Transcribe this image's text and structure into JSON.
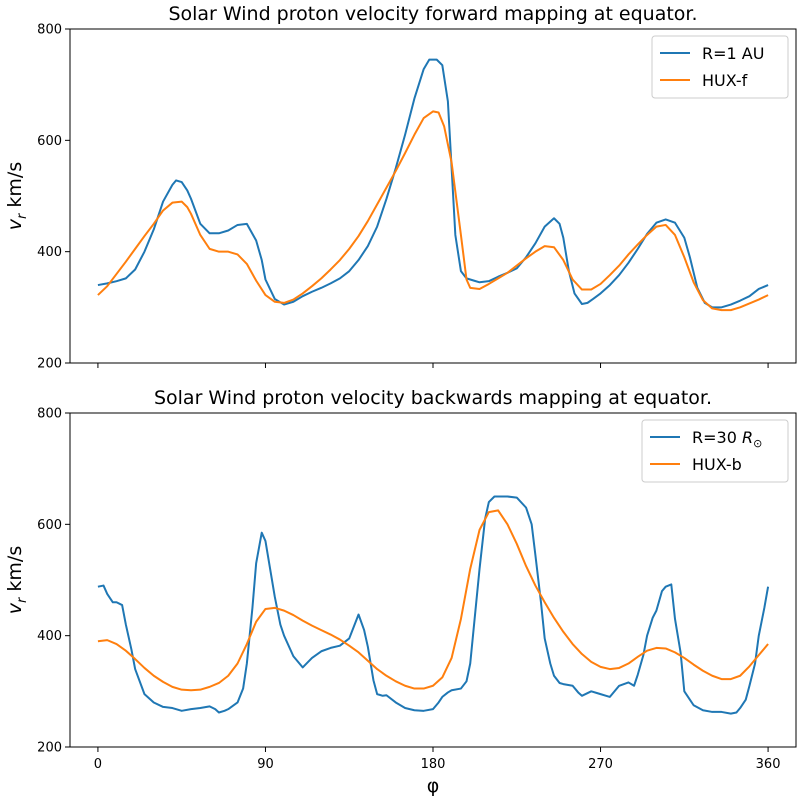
{
  "chart_data": [
    {
      "type": "line",
      "title": "Solar Wind proton velocity forward mapping at equator.",
      "ylabel_main": "v",
      "ylabel_sub": "r",
      "ylabel_unit": " km/s",
      "xlabel": "",
      "xlim": [
        -15,
        375
      ],
      "ylim": [
        200,
        800
      ],
      "xticks": [
        0,
        90,
        180,
        270,
        360
      ],
      "xtick_labels": [
        "",
        "",
        "",
        "",
        ""
      ],
      "yticks": [
        200,
        400,
        600,
        800
      ],
      "legend_position": "top-right",
      "series": [
        {
          "name_main": "R=1 AU",
          "name_sub": "",
          "color": "#1f77b4",
          "x": [
            0,
            5,
            10,
            15,
            20,
            25,
            30,
            35,
            40,
            42,
            45,
            48,
            50,
            55,
            60,
            65,
            70,
            75,
            80,
            85,
            88,
            90,
            95,
            100,
            105,
            110,
            115,
            120,
            125,
            130,
            135,
            140,
            145,
            150,
            155,
            160,
            165,
            170,
            175,
            178,
            182,
            185,
            188,
            192,
            195,
            198,
            202,
            205,
            210,
            215,
            220,
            225,
            230,
            235,
            240,
            245,
            248,
            250,
            253,
            256,
            260,
            263,
            266,
            270,
            275,
            280,
            285,
            290,
            295,
            300,
            305,
            310,
            315,
            318,
            322,
            326,
            330,
            335,
            340,
            345,
            350,
            355,
            360
          ],
          "y": [
            340,
            343,
            347,
            352,
            368,
            400,
            440,
            490,
            520,
            528,
            525,
            510,
            495,
            450,
            433,
            433,
            438,
            448,
            450,
            420,
            385,
            350,
            315,
            305,
            310,
            320,
            328,
            335,
            343,
            352,
            365,
            385,
            410,
            445,
            495,
            550,
            610,
            675,
            728,
            745,
            745,
            735,
            670,
            430,
            365,
            352,
            348,
            345,
            347,
            355,
            362,
            370,
            390,
            415,
            445,
            460,
            450,
            425,
            365,
            325,
            306,
            308,
            315,
            325,
            340,
            358,
            380,
            405,
            432,
            452,
            458,
            452,
            425,
            390,
            335,
            308,
            300,
            300,
            305,
            312,
            320,
            333,
            340
          ]
        },
        {
          "name_main": "HUX-f",
          "name_sub": "",
          "color": "#ff7f0e",
          "x": [
            0,
            5,
            10,
            15,
            20,
            25,
            30,
            35,
            40,
            45,
            48,
            50,
            55,
            60,
            65,
            70,
            75,
            80,
            85,
            90,
            95,
            100,
            105,
            110,
            115,
            120,
            125,
            130,
            135,
            140,
            145,
            150,
            155,
            160,
            165,
            170,
            175,
            180,
            183,
            186,
            190,
            195,
            198,
            200,
            205,
            210,
            215,
            220,
            225,
            230,
            235,
            240,
            245,
            250,
            255,
            260,
            265,
            270,
            275,
            280,
            285,
            290,
            295,
            300,
            305,
            310,
            315,
            320,
            325,
            330,
            335,
            340,
            345,
            350,
            355,
            360
          ],
          "y": [
            322,
            338,
            360,
            382,
            405,
            428,
            450,
            474,
            488,
            490,
            480,
            468,
            430,
            405,
            400,
            400,
            395,
            378,
            348,
            322,
            310,
            308,
            314,
            325,
            338,
            352,
            368,
            385,
            405,
            428,
            455,
            485,
            515,
            545,
            577,
            610,
            640,
            652,
            650,
            625,
            560,
            430,
            350,
            335,
            333,
            342,
            352,
            362,
            375,
            388,
            400,
            410,
            408,
            385,
            350,
            332,
            332,
            342,
            358,
            375,
            395,
            413,
            430,
            445,
            448,
            430,
            390,
            345,
            313,
            298,
            295,
            295,
            300,
            307,
            314,
            322
          ]
        }
      ]
    },
    {
      "type": "line",
      "title": "Solar Wind proton velocity backwards mapping at equator.",
      "ylabel_main": "v",
      "ylabel_sub": "r",
      "ylabel_unit": " km/s",
      "xlabel": "φ",
      "xlim": [
        -15,
        375
      ],
      "ylim": [
        200,
        800
      ],
      "xticks": [
        0,
        90,
        180,
        270,
        360
      ],
      "xtick_labels": [
        "0",
        "90",
        "180",
        "270",
        "360"
      ],
      "yticks": [
        200,
        400,
        600,
        800
      ],
      "legend_position": "top-right",
      "series": [
        {
          "name_main": "R=30 ",
          "name_sub": "⊙",
          "color": "#1f77b4",
          "x": [
            0,
            3,
            5,
            8,
            10,
            13,
            15,
            18,
            20,
            25,
            30,
            35,
            40,
            45,
            50,
            55,
            60,
            63,
            65,
            68,
            70,
            75,
            78,
            80,
            83,
            85,
            88,
            90,
            93,
            95,
            98,
            100,
            105,
            110,
            115,
            120,
            125,
            130,
            135,
            140,
            143,
            145,
            148,
            150,
            153,
            155,
            160,
            165,
            170,
            175,
            180,
            183,
            185,
            188,
            190,
            195,
            198,
            200,
            205,
            208,
            210,
            213,
            215,
            218,
            220,
            225,
            230,
            233,
            235,
            238,
            240,
            243,
            245,
            248,
            250,
            255,
            258,
            260,
            265,
            268,
            270,
            273,
            275,
            280,
            285,
            288,
            290,
            293,
            295,
            298,
            300,
            303,
            305,
            308,
            310,
            313,
            315,
            318,
            320,
            325,
            330,
            335,
            340,
            343,
            345,
            348,
            350,
            353,
            355,
            358,
            360
          ],
          "y": [
            488,
            490,
            475,
            460,
            460,
            455,
            420,
            375,
            340,
            295,
            280,
            272,
            270,
            265,
            268,
            270,
            273,
            268,
            262,
            265,
            268,
            280,
            305,
            350,
            450,
            530,
            585,
            570,
            510,
            470,
            420,
            400,
            363,
            343,
            360,
            372,
            378,
            382,
            395,
            438,
            410,
            380,
            320,
            295,
            292,
            293,
            280,
            270,
            266,
            265,
            268,
            280,
            290,
            298,
            302,
            305,
            318,
            350,
            520,
            610,
            640,
            650,
            650,
            650,
            650,
            648,
            630,
            600,
            545,
            460,
            395,
            350,
            328,
            315,
            313,
            310,
            298,
            292,
            300,
            297,
            295,
            292,
            290,
            310,
            316,
            310,
            330,
            365,
            400,
            432,
            445,
            480,
            488,
            492,
            430,
            370,
            300,
            285,
            275,
            266,
            263,
            263,
            260,
            262,
            270,
            285,
            310,
            350,
            400,
            450,
            488
          ]
        },
        {
          "name_main": "HUX-b",
          "name_sub": "",
          "color": "#ff7f0e",
          "x": [
            0,
            5,
            10,
            15,
            20,
            25,
            30,
            35,
            40,
            45,
            50,
            55,
            60,
            65,
            70,
            75,
            80,
            85,
            90,
            95,
            100,
            105,
            110,
            115,
            120,
            125,
            130,
            135,
            140,
            145,
            150,
            155,
            160,
            165,
            170,
            175,
            180,
            185,
            190,
            195,
            200,
            205,
            210,
            215,
            220,
            225,
            230,
            235,
            240,
            245,
            250,
            255,
            260,
            265,
            270,
            275,
            280,
            285,
            290,
            295,
            300,
            305,
            310,
            315,
            320,
            325,
            330,
            335,
            340,
            345,
            350,
            355,
            360
          ],
          "y": [
            390,
            392,
            385,
            373,
            358,
            342,
            328,
            317,
            308,
            303,
            302,
            303,
            308,
            315,
            328,
            350,
            385,
            425,
            448,
            450,
            445,
            437,
            427,
            418,
            410,
            402,
            393,
            382,
            370,
            355,
            340,
            328,
            318,
            310,
            305,
            305,
            310,
            325,
            360,
            430,
            520,
            590,
            622,
            625,
            600,
            565,
            525,
            490,
            460,
            432,
            407,
            385,
            367,
            353,
            344,
            340,
            342,
            350,
            362,
            373,
            378,
            377,
            370,
            360,
            348,
            337,
            328,
            322,
            322,
            328,
            345,
            365,
            385
          ]
        }
      ]
    }
  ]
}
